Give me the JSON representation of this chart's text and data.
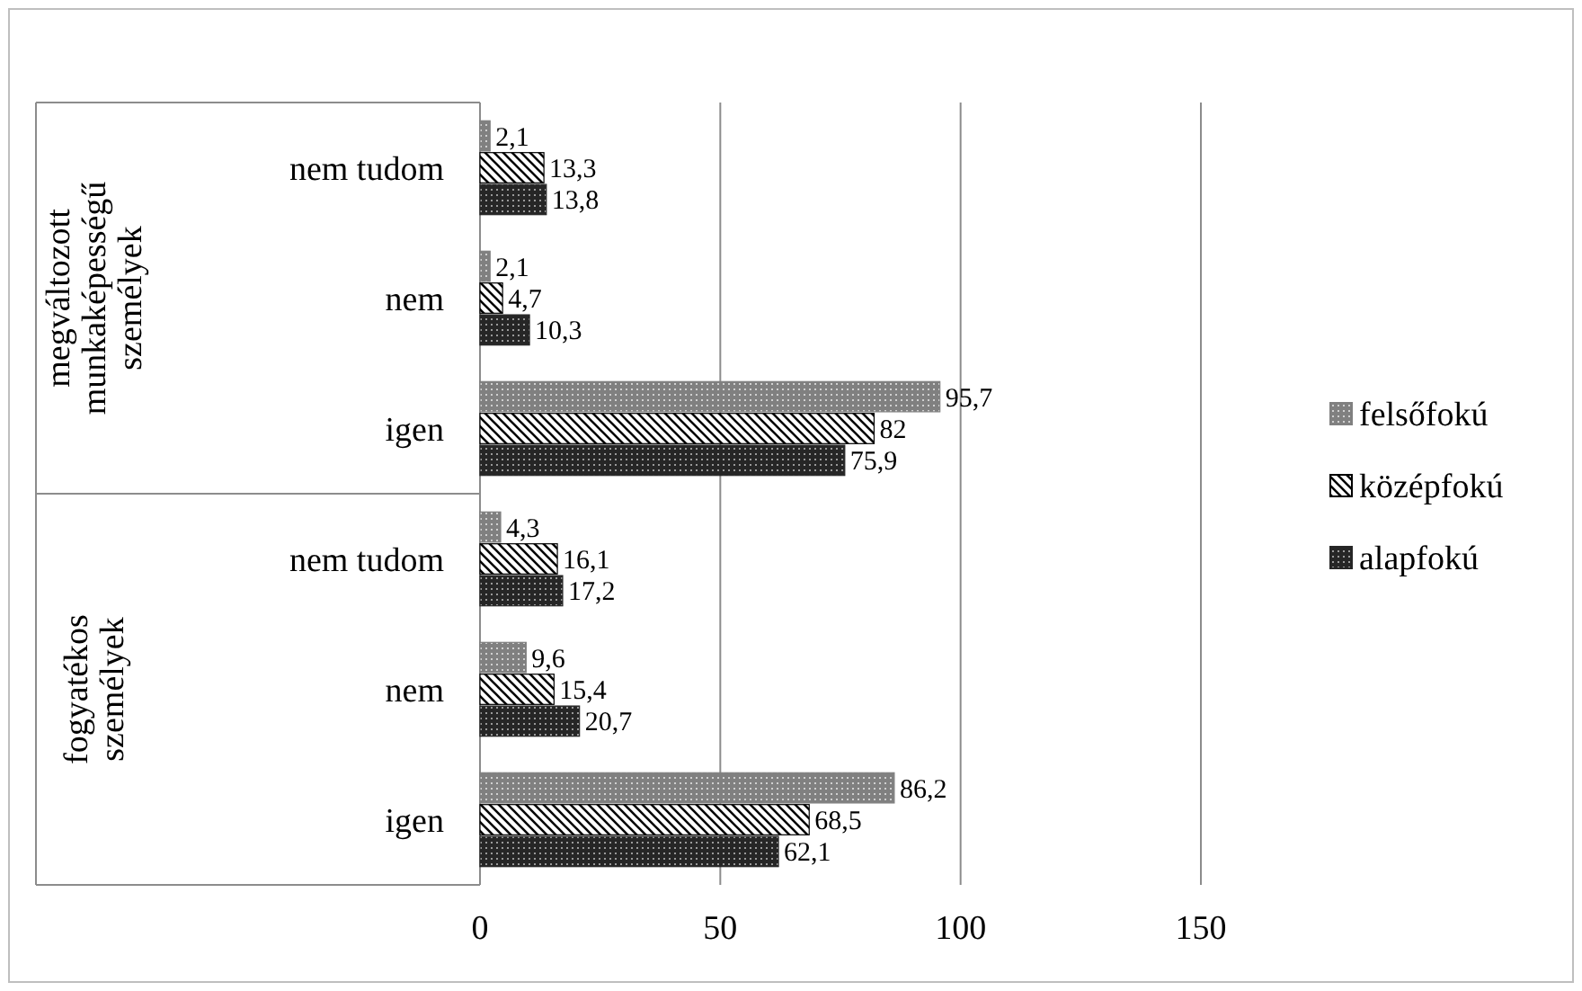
{
  "chart_data": {
    "type": "bar",
    "orientation": "horizontal",
    "categories": [
      "nem tudom",
      "nem",
      "igen",
      "nem tudom",
      "nem",
      "igen"
    ],
    "series": [
      {
        "name": "felsőfokú",
        "color": "#808080",
        "values": [
          2.1,
          2.1,
          95.7,
          4.3,
          9.6,
          86.2
        ],
        "value_labels": [
          "2,1",
          "2,1",
          "95,7",
          "4,3",
          "9,6",
          "86,2"
        ]
      },
      {
        "name": "középfokú",
        "color": "#000000",
        "values": [
          13.3,
          4.7,
          82,
          16.1,
          15.4,
          68.5
        ],
        "value_labels": [
          "13,3",
          "4,7",
          "82",
          "16,1",
          "15,4",
          "68,5"
        ]
      },
      {
        "name": "alapfokú",
        "color": "#262626",
        "values": [
          13.8,
          10.3,
          75.9,
          17.2,
          20.7,
          62.1
        ],
        "value_labels": [
          "13,8",
          "10,3",
          "75,9",
          "17,2",
          "20,7",
          "62,1"
        ]
      }
    ],
    "xlim": [
      0,
      150
    ],
    "xticks": [
      0,
      50,
      100,
      150
    ],
    "grid": "x",
    "legend": "right",
    "annotations": [
      "megváltozott munkaképességű személyek",
      "fogyatékos személyek"
    ]
  }
}
